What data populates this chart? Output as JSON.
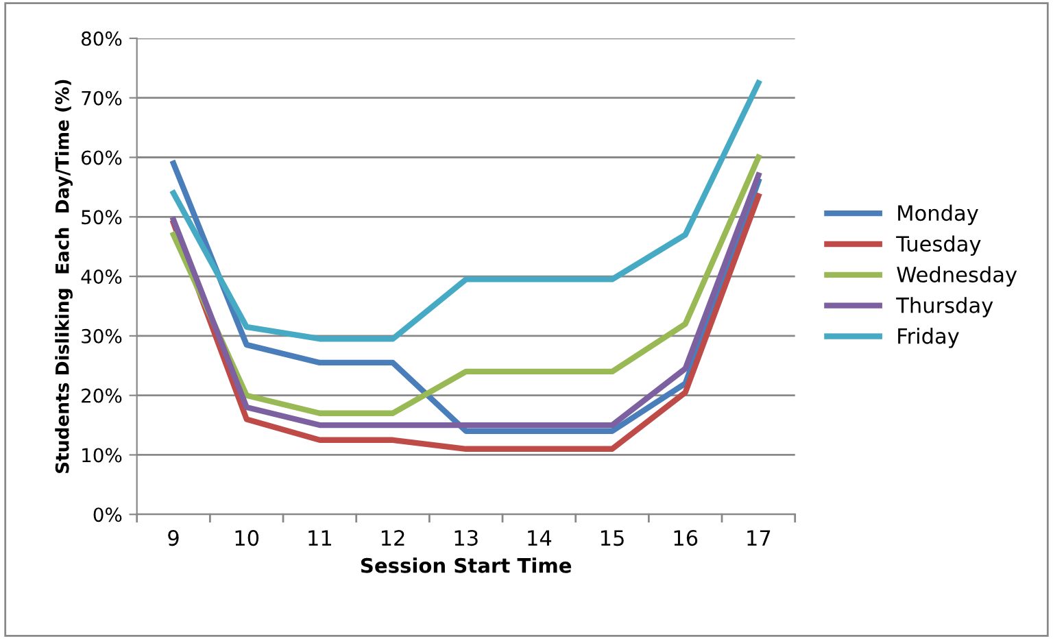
{
  "chart_data": {
    "type": "line",
    "xlabel": "Session Start Time",
    "ylabel": "Students Disliking  Each  Day/Time (%)",
    "categories": [
      "9",
      "10",
      "11",
      "12",
      "13",
      "14",
      "15",
      "16",
      "17"
    ],
    "series": [
      {
        "name": "Monday",
        "color": "#4a7ebb",
        "values": [
          59,
          28.5,
          25.5,
          25.5,
          14,
          14,
          14,
          22,
          56
        ]
      },
      {
        "name": "Tuesday",
        "color": "#be4b48",
        "values": [
          49,
          16,
          12.5,
          12.5,
          11,
          11,
          11,
          20.5,
          53.5
        ]
      },
      {
        "name": "Wednesday",
        "color": "#98b954",
        "values": [
          47,
          20,
          17,
          17,
          24,
          24,
          24,
          32,
          60
        ]
      },
      {
        "name": "Thursday",
        "color": "#7d60a0",
        "values": [
          49.5,
          18,
          15,
          15,
          15,
          15,
          15,
          24.5,
          57
        ]
      },
      {
        "name": "Friday",
        "color": "#46aac5",
        "values": [
          54,
          31.5,
          29.5,
          29.5,
          39.5,
          39.5,
          39.5,
          47,
          72.5
        ]
      }
    ],
    "ylim": [
      0,
      80
    ],
    "yticks": [
      {
        "value": 0,
        "label": "0%"
      },
      {
        "value": 10,
        "label": "10%"
      },
      {
        "value": 20,
        "label": "20%"
      },
      {
        "value": 30,
        "label": "30%"
      },
      {
        "value": 40,
        "label": "40%"
      },
      {
        "value": 50,
        "label": "50%"
      },
      {
        "value": 60,
        "label": "60%"
      },
      {
        "value": 70,
        "label": "70%"
      },
      {
        "value": 80,
        "label": "80%"
      }
    ],
    "grid": "y",
    "legend": "right",
    "marker": "none",
    "line_style": "solid"
  }
}
